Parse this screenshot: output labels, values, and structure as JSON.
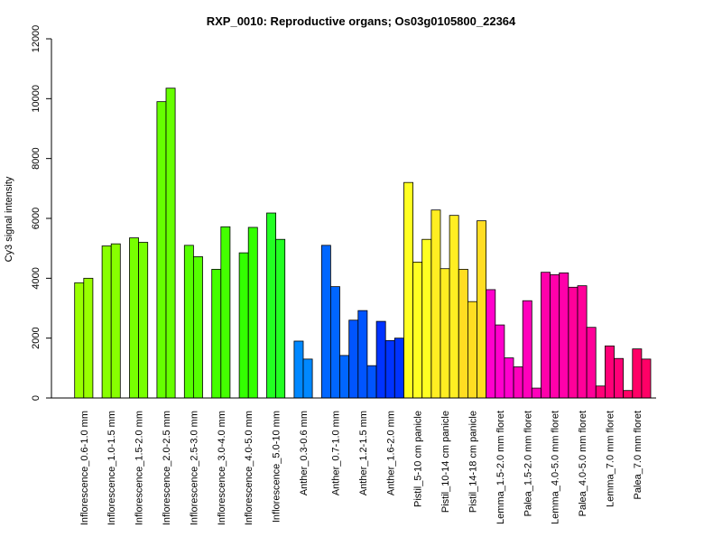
{
  "chart_data": {
    "type": "bar",
    "title": "RXP_0010: Reproductive organs; Os03g0105800_22364",
    "xlabel": "",
    "ylabel": "Cy3 signal intensity",
    "ylim": [
      0,
      12000
    ],
    "yticks": [
      0,
      2000,
      4000,
      6000,
      8000,
      10000,
      12000
    ],
    "grid": false,
    "legend": "none",
    "groups": [
      {
        "label": "Inflorescence_0.6-1.0 mm",
        "color": "#99ff00",
        "values": [
          3850,
          4000
        ]
      },
      {
        "label": "Inflorescence_1.0-1.5 mm",
        "color": "#88ff00",
        "values": [
          5080,
          5150
        ]
      },
      {
        "label": "Inflorescence_1.5-2.0 mm",
        "color": "#77ff00",
        "values": [
          5350,
          5200
        ]
      },
      {
        "label": "Inflorescence_2.0-2.5 mm",
        "color": "#66ff00",
        "values": [
          9900,
          10350
        ]
      },
      {
        "label": "Inflorescence_2.5-3.0 mm",
        "color": "#55ff00",
        "values": [
          5100,
          4720
        ]
      },
      {
        "label": "Inflorescence_3.0-4.0 mm",
        "color": "#44ff00",
        "values": [
          4300,
          5720
        ]
      },
      {
        "label": "Inflorescence_4.0-5.0 mm",
        "color": "#33ff00",
        "values": [
          4850,
          5700
        ]
      },
      {
        "label": "Inflorescence_5.0-10 mm",
        "color": "#22ff22",
        "values": [
          6180,
          5300
        ]
      },
      {
        "label": "Anther_0.3-0.6 mm",
        "color": "#0088ff",
        "values": [
          1900,
          1300
        ]
      },
      {
        "label": "Anther_0.7-1.0 mm",
        "color": "#0066ff",
        "values": [
          5100,
          3720,
          1420
        ]
      },
      {
        "label": "Anther_1.2-1.5 mm",
        "color": "#0055ff",
        "values": [
          2600,
          2920,
          1080
        ]
      },
      {
        "label": "Anther_1.6-2.0 mm",
        "color": "#0033ff",
        "values": [
          2560,
          1920,
          2000
        ]
      },
      {
        "label": "Pistil_5-10 cm panicle",
        "color": "#ffff22",
        "values": [
          7200,
          4540,
          5300
        ]
      },
      {
        "label": "Pistil_10-14 cm panicle",
        "color": "#ffee22",
        "values": [
          6280,
          4320,
          6100
        ]
      },
      {
        "label": "Pistil_14-18 cm panicle",
        "color": "#ffdd22",
        "values": [
          4300,
          3220,
          5920
        ]
      },
      {
        "label": "Lemma_1.5-2.0 mm floret",
        "color": "#ff00cc",
        "values": [
          3620,
          2440,
          1340
        ]
      },
      {
        "label": "Palea_1.5-2.0 mm floret",
        "color": "#ff00bb",
        "values": [
          1040,
          3250,
          330
        ]
      },
      {
        "label": "Lemma_4.0-5.0 mm floret",
        "color": "#ff00aa",
        "values": [
          4200,
          4120,
          4180
        ]
      },
      {
        "label": "Palea_4.0-5.0 mm floret",
        "color": "#ff0099",
        "values": [
          3700,
          3750,
          2360
        ]
      },
      {
        "label": "Lemma_7.0 mm floret",
        "color": "#ff0077",
        "values": [
          400,
          1740,
          1320
        ]
      },
      {
        "label": "Palea_7.0 mm floret",
        "color": "#ff0066",
        "values": [
          250,
          1640,
          1300
        ]
      }
    ]
  }
}
